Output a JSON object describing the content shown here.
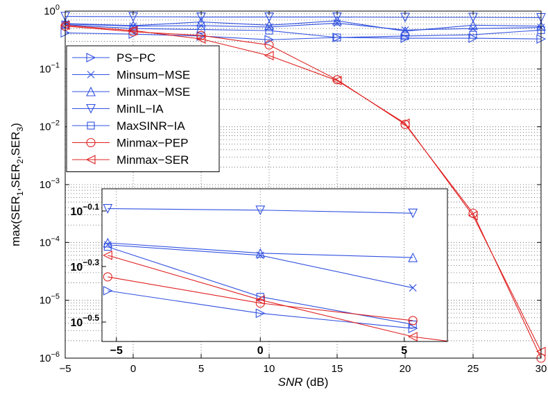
{
  "chart_data": {
    "type": "line",
    "scale_y": "log",
    "x": [
      -5,
      0,
      5,
      10,
      15,
      20,
      25,
      30
    ],
    "x_ticks": [
      "−5",
      "0",
      "5",
      "10",
      "15",
      "20",
      "25",
      "30"
    ],
    "xlabel_italic": "SNR",
    "xlabel_rest": " (dB)",
    "ylabel": "max(SER1,SER2,SER3)",
    "ylabel_parts": [
      "max(SER",
      "1",
      ",SER",
      "2",
      ",SER",
      "3",
      ")"
    ],
    "xlim": [
      -5,
      30
    ],
    "ylim": [
      1e-06,
      1
    ],
    "y_ticks": [
      {
        "value": 1,
        "base": "10",
        "exp": "0"
      },
      {
        "value": 0.1,
        "base": "10",
        "exp": "−1"
      },
      {
        "value": 0.01,
        "base": "10",
        "exp": "−2"
      },
      {
        "value": 0.001,
        "base": "10",
        "exp": "−3"
      },
      {
        "value": 0.0001,
        "base": "10",
        "exp": "−4"
      },
      {
        "value": 1e-05,
        "base": "10",
        "exp": "−5"
      },
      {
        "value": 1e-06,
        "base": "10",
        "exp": "−6"
      }
    ],
    "grid": true,
    "legend_position": "upper-left",
    "series": [
      {
        "name": "PS−PC",
        "color": "#3050e0",
        "marker": "triangle-right",
        "values": [
          0.42,
          0.4,
          0.37,
          0.32,
          0.35,
          0.34,
          0.34,
          0.33
        ]
      },
      {
        "name": "Minsum−MSE",
        "color": "#3050e0",
        "marker": "x",
        "values": [
          0.6,
          0.55,
          0.56,
          0.53,
          0.62,
          0.47,
          0.5,
          0.52
        ]
      },
      {
        "name": "Minmax−MSE",
        "color": "#3050e0",
        "marker": "triangle-up",
        "values": [
          0.61,
          0.56,
          0.65,
          0.57,
          0.68,
          0.45,
          0.57,
          0.55
        ]
      },
      {
        "name": "MinIL−IA",
        "color": "#3050e0",
        "marker": "triangle-down",
        "values": [
          0.81,
          0.8,
          0.79,
          0.79,
          0.79,
          0.78,
          0.78,
          0.77
        ]
      },
      {
        "name": "MaxSINR−IA",
        "color": "#3050e0",
        "marker": "square",
        "values": [
          0.58,
          0.5,
          0.48,
          0.46,
          0.35,
          0.37,
          0.39,
          0.47
        ]
      },
      {
        "name": "Minmax−PEP",
        "color": "#e02020",
        "marker": "circle",
        "values": [
          0.55,
          0.44,
          0.38,
          0.26,
          0.065,
          0.011,
          0.00032,
          1e-06
        ]
      },
      {
        "name": "Minmax−SER",
        "color": "#e02020",
        "marker": "triangle-left",
        "values": [
          0.57,
          0.46,
          0.33,
          0.17,
          0.063,
          0.0115,
          0.00029,
          1.3e-06
        ]
      }
    ],
    "inset": {
      "xlim": [
        -5.5,
        6.5
      ],
      "ylim_log10": [
        -0.57,
        -0.02
      ],
      "x_ticks": [
        {
          "value": -5,
          "label": "−5"
        },
        {
          "value": 0,
          "label": "0"
        },
        {
          "value": 5,
          "label": "5"
        }
      ],
      "y_ticks": [
        {
          "value": -0.1,
          "base": "10",
          "exp": "−0.1"
        },
        {
          "value": -0.3,
          "base": "10",
          "exp": "−0.3"
        },
        {
          "value": -0.5,
          "base": "10",
          "exp": "−0.5"
        }
      ],
      "series": [
        {
          "name": "PS−PC",
          "points": [
            [
              -5.3,
              0.41
            ],
            [
              0,
              0.34
            ],
            [
              5.3,
              0.3
            ]
          ]
        },
        {
          "name": "Minsum−MSE",
          "points": [
            [
              -5.3,
              0.6
            ],
            [
              0,
              0.55
            ],
            [
              5.3,
              0.42
            ]
          ]
        },
        {
          "name": "Minmax−MSE",
          "points": [
            [
              -5.3,
              0.61
            ],
            [
              0,
              0.56
            ],
            [
              5.3,
              0.54
            ]
          ]
        },
        {
          "name": "MinIL−IA",
          "points": [
            [
              -5.3,
              0.81
            ],
            [
              0,
              0.8
            ],
            [
              5.3,
              0.78
            ]
          ]
        },
        {
          "name": "MaxSINR−IA",
          "points": [
            [
              -5.3,
              0.59
            ],
            [
              0,
              0.39
            ],
            [
              5.3,
              0.31
            ]
          ]
        },
        {
          "name": "Minmax−PEP",
          "points": [
            [
              -5.3,
              0.46
            ],
            [
              0,
              0.37
            ],
            [
              5.3,
              0.32
            ]
          ]
        },
        {
          "name": "Minmax−SER",
          "points": [
            [
              -5.3,
              0.55
            ],
            [
              0,
              0.38
            ],
            [
              5.3,
              0.28
            ],
            [
              6.5,
              0.27
            ]
          ]
        }
      ]
    }
  }
}
